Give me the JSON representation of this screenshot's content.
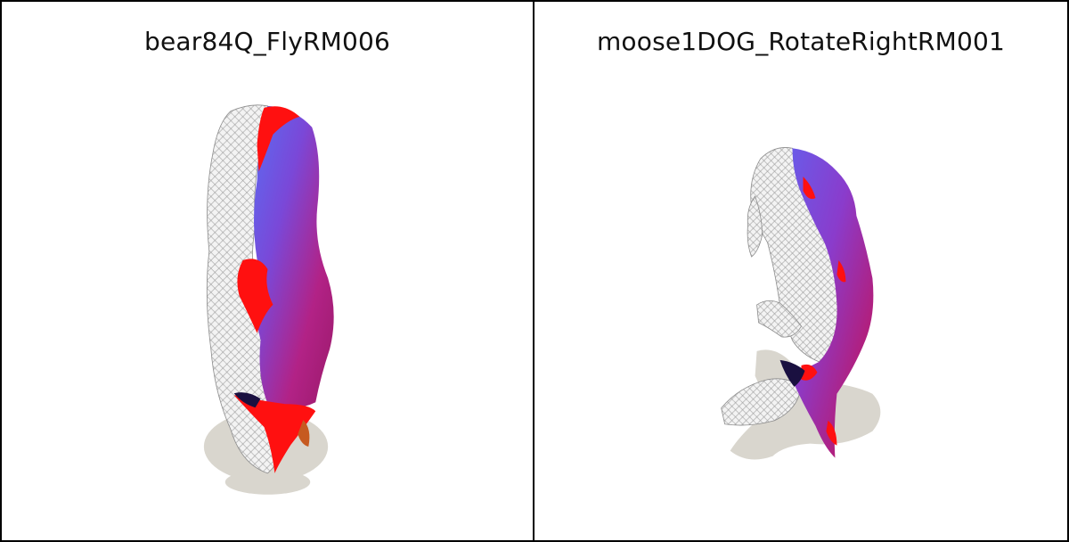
{
  "panels": [
    {
      "title": "bear84Q_FlyRM006"
    },
    {
      "title": "moose1DOG_RotateRightRM001"
    }
  ],
  "colors": {
    "border": "#000000",
    "background": "#ffffff",
    "shadow": "#d9d6ce",
    "mesh_fill": "#f2f2f2",
    "mesh_line": "#9a9a9a",
    "surface_blue": "#4a5ee8",
    "surface_magenta": "#b0207a",
    "highlight_red": "#ff1010",
    "dark_navy": "#1a1040"
  }
}
